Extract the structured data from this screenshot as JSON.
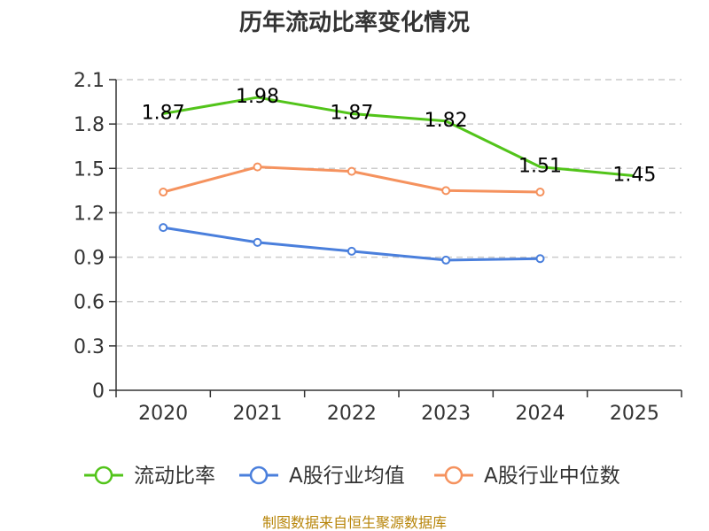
{
  "chart_data": {
    "type": "line",
    "title": "历年流动比率变化情况",
    "categories": [
      "2020",
      "2021",
      "2022",
      "2023",
      "2024",
      "2025"
    ],
    "ylim": [
      0,
      2.1
    ],
    "yticks": [
      "0",
      "0.3",
      "0.6",
      "0.9",
      "1.2",
      "1.5",
      "1.8",
      "2.1"
    ],
    "grid": true,
    "legend_position": "bottom",
    "series": [
      {
        "name": "流动比率",
        "color": "#52c41a",
        "marker": "none",
        "values": [
          1.87,
          1.98,
          1.87,
          1.82,
          1.51,
          1.45
        ],
        "labels": [
          "1.87",
          "1.98",
          "1.87",
          "1.82",
          "1.51",
          "1.45"
        ]
      },
      {
        "name": "A股行业均值",
        "color": "#4a7fdc",
        "marker": "circle",
        "values": [
          1.1,
          1.0,
          0.94,
          0.88,
          0.89,
          null
        ]
      },
      {
        "name": "A股行业中位数",
        "color": "#f5925e",
        "marker": "circle",
        "values": [
          1.34,
          1.51,
          1.48,
          1.35,
          1.34,
          null
        ]
      }
    ],
    "source": "制图数据来自恒生聚源数据库"
  }
}
